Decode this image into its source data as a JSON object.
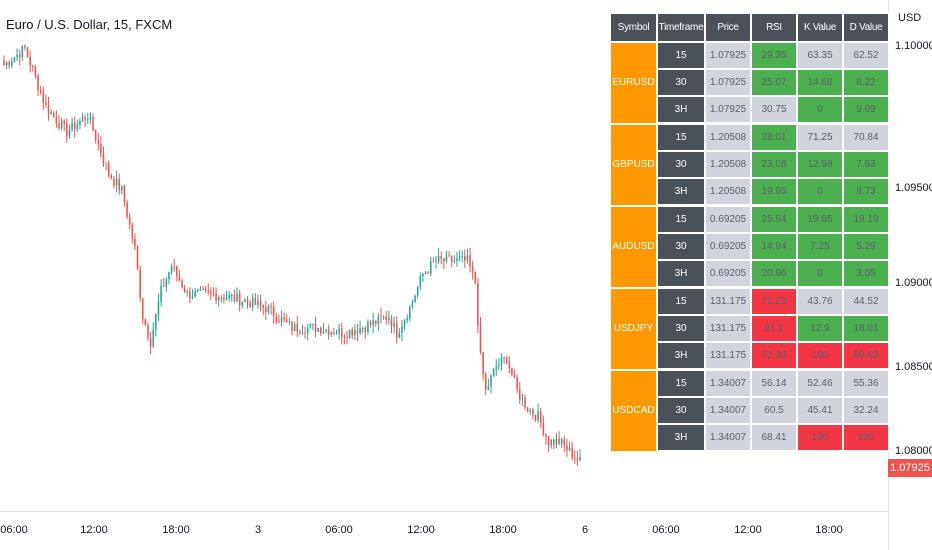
{
  "header": {
    "title": "Euro / U.S. Dollar, 15, FXCM"
  },
  "price_axis": {
    "currency": "USD",
    "ticks": [
      "1.10000",
      "1.09500",
      "1.09000",
      "1.08500",
      "1.08000"
    ],
    "current_price": "1.07925"
  },
  "time_axis": {
    "ticks": [
      "06:00",
      "12:00",
      "18:00",
      "3",
      "06:00",
      "12:00",
      "18:00",
      "6",
      "06:00",
      "12:00",
      "18:00"
    ]
  },
  "colors": {
    "up": "#26a69a",
    "down": "#ef5350",
    "symbol_bg": "#ff9800",
    "header_bg": "#4a5159",
    "neutral": "#d1d4dc",
    "green": "#4caf50",
    "red": "#f23645"
  },
  "screener": {
    "columns": [
      "Symbol",
      "Timeframe",
      "Price",
      "RSI",
      "K Value",
      "D Value"
    ],
    "groups": [
      {
        "symbol": "EURUSD",
        "rows": [
          {
            "tf": "15",
            "price": "1.07925",
            "rsi": "29.35",
            "k": "63.35",
            "d": "62.52",
            "rsi_c": "green",
            "k_c": "gray",
            "d_c": "gray"
          },
          {
            "tf": "30",
            "price": "1.07925",
            "rsi": "25.07",
            "k": "14.68",
            "d": "8.22",
            "rsi_c": "green",
            "k_c": "green",
            "d_c": "green"
          },
          {
            "tf": "3H",
            "price": "1.07925",
            "rsi": "30.75",
            "k": "0",
            "d": "9.09",
            "rsi_c": "gray",
            "k_c": "green",
            "d_c": "green"
          }
        ]
      },
      {
        "symbol": "GBPUSD",
        "rows": [
          {
            "tf": "15",
            "price": "1.20508",
            "rsi": "28.01",
            "k": "71.25",
            "d": "70.84",
            "rsi_c": "green",
            "k_c": "gray",
            "d_c": "gray"
          },
          {
            "tf": "30",
            "price": "1.20508",
            "rsi": "23.08",
            "k": "12.98",
            "d": "7.93",
            "rsi_c": "green",
            "k_c": "green",
            "d_c": "green"
          },
          {
            "tf": "3H",
            "price": "1.20508",
            "rsi": "19.95",
            "k": "0",
            "d": "9.73",
            "rsi_c": "green",
            "k_c": "green",
            "d_c": "green"
          }
        ]
      },
      {
        "symbol": "AUDUSD",
        "rows": [
          {
            "tf": "15",
            "price": "0.69205",
            "rsi": "25.94",
            "k": "19.85",
            "d": "19.19",
            "rsi_c": "green",
            "k_c": "green",
            "d_c": "green"
          },
          {
            "tf": "30",
            "price": "0.69205",
            "rsi": "14.94",
            "k": "7.25",
            "d": "5.29",
            "rsi_c": "green",
            "k_c": "green",
            "d_c": "green"
          },
          {
            "tf": "3H",
            "price": "0.69205",
            "rsi": "20.96",
            "k": "0",
            "d": "3.05",
            "rsi_c": "green",
            "k_c": "green",
            "d_c": "green"
          }
        ]
      },
      {
        "symbol": "USDJPY",
        "rows": [
          {
            "tf": "15",
            "price": "131.175",
            "rsi": "71.23",
            "k": "43.76",
            "d": "44.52",
            "rsi_c": "red",
            "k_c": "gray",
            "d_c": "gray"
          },
          {
            "tf": "30",
            "price": "131.175",
            "rsi": "81.1",
            "k": "12.9",
            "d": "18.01",
            "rsi_c": "red",
            "k_c": "green",
            "d_c": "green"
          },
          {
            "tf": "3H",
            "price": "131.175",
            "rsi": "72.36",
            "k": "100",
            "d": "89.62",
            "rsi_c": "red",
            "k_c": "red",
            "d_c": "red"
          }
        ]
      },
      {
        "symbol": "USDCAD",
        "rows": [
          {
            "tf": "15",
            "price": "1.34007",
            "rsi": "56.14",
            "k": "52.46",
            "d": "55.36",
            "rsi_c": "gray",
            "k_c": "gray",
            "d_c": "gray"
          },
          {
            "tf": "30",
            "price": "1.34007",
            "rsi": "60.5",
            "k": "45.41",
            "d": "32.24",
            "rsi_c": "gray",
            "k_c": "gray",
            "d_c": "gray"
          },
          {
            "tf": "3H",
            "price": "1.34007",
            "rsi": "68.41",
            "k": "100",
            "d": "100",
            "rsi_c": "gray",
            "k_c": "red",
            "d_c": "red"
          }
        ]
      }
    ]
  },
  "chart_data": {
    "type": "candlestick",
    "ylim": [
      1.0788,
      1.1045
    ],
    "series_anchors": [
      [
        0,
        1.103
      ],
      [
        8,
        1.104
      ],
      [
        16,
        1.1005
      ],
      [
        24,
        1.099
      ],
      [
        32,
        1.1
      ],
      [
        40,
        1.0965
      ],
      [
        45,
        1.0955
      ],
      [
        50,
        1.092
      ],
      [
        53,
        1.088
      ],
      [
        56,
        1.0865
      ],
      [
        60,
        1.0895
      ],
      [
        64,
        1.091
      ],
      [
        70,
        1.0893
      ],
      [
        80,
        1.0893
      ],
      [
        90,
        1.089
      ],
      [
        100,
        1.0885
      ],
      [
        110,
        1.0873
      ],
      [
        120,
        1.0873
      ],
      [
        130,
        1.087
      ],
      [
        140,
        1.0875
      ],
      [
        147,
        1.088
      ],
      [
        150,
        1.087
      ],
      [
        155,
        1.0885
      ],
      [
        160,
        1.0905
      ],
      [
        165,
        1.0913
      ],
      [
        170,
        1.0913
      ],
      [
        177,
        1.0913
      ],
      [
        180,
        1.09
      ],
      [
        182,
        1.0855
      ],
      [
        184,
        1.0835
      ],
      [
        188,
        1.085
      ],
      [
        192,
        1.0855
      ],
      [
        196,
        1.0835
      ],
      [
        200,
        1.0825
      ],
      [
        204,
        1.082
      ],
      [
        208,
        1.0805
      ],
      [
        212,
        1.0805
      ],
      [
        220,
        1.0793
      ]
    ]
  }
}
